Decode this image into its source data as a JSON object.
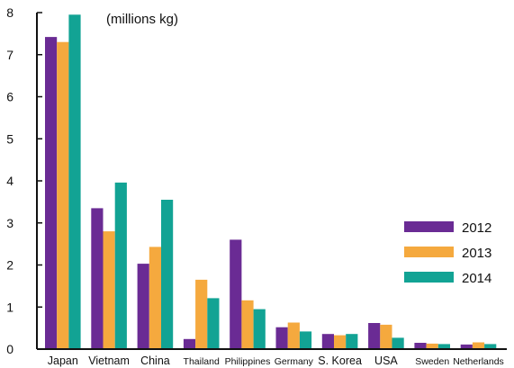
{
  "chart_data": {
    "type": "bar",
    "unit_label": "(millions kg)",
    "categories": [
      "Japan",
      "Vietnam",
      "China",
      "Thailand",
      "Philippines",
      "Germany",
      "S. Korea",
      "USA",
      "Sweden",
      "Netherlands"
    ],
    "series": [
      {
        "name": "2012",
        "color": "#6a2b94",
        "values": [
          7.42,
          3.35,
          2.03,
          0.24,
          2.6,
          0.52,
          0.36,
          0.62,
          0.15,
          0.11
        ]
      },
      {
        "name": "2013",
        "color": "#f5a93e",
        "values": [
          7.3,
          2.8,
          2.43,
          1.65,
          1.16,
          0.63,
          0.33,
          0.58,
          0.13,
          0.16
        ]
      },
      {
        "name": "2014",
        "color": "#12a394",
        "values": [
          7.95,
          3.96,
          3.55,
          1.21,
          0.95,
          0.42,
          0.36,
          0.27,
          0.12,
          0.12
        ]
      }
    ],
    "yticks": [
      "0",
      "1",
      "2",
      "3",
      "4",
      "5",
      "6",
      "7",
      "8"
    ],
    "ylim": [
      0,
      8
    ],
    "grid": false,
    "legend_position": "right"
  }
}
